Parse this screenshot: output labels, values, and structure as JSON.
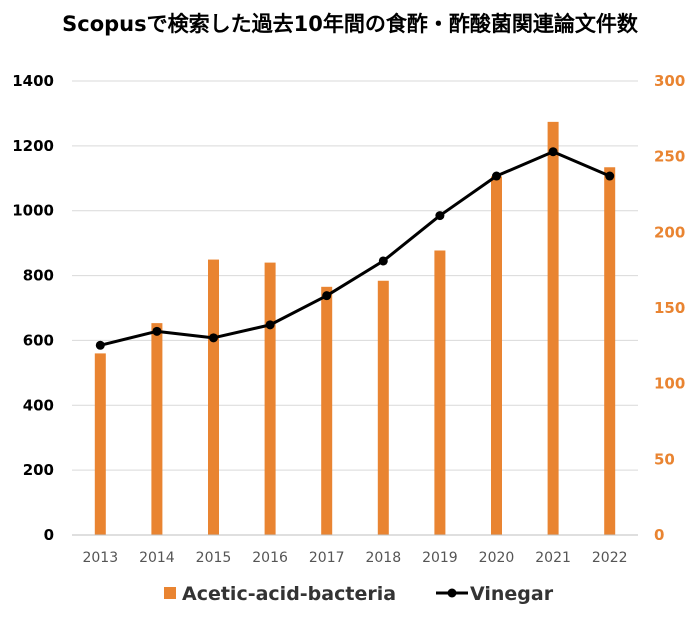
{
  "chart_data": {
    "type": "bar+line",
    "title": "Scopusで検索した過去10年間の食酢・酢酸菌関連論文件数",
    "categories": [
      "2013",
      "2014",
      "2015",
      "2016",
      "2017",
      "2018",
      "2019",
      "2020",
      "2021",
      "2022"
    ],
    "series": [
      {
        "name": "Acetic-acid-bacteria",
        "type": "bar",
        "axis": "right",
        "color": "#e98431",
        "values": [
          120,
          140,
          182,
          180,
          164,
          168,
          188,
          237,
          273,
          243
        ]
      },
      {
        "name": "Vinegar",
        "type": "line",
        "axis": "left",
        "color": "#000000",
        "values": [
          585,
          628,
          608,
          648,
          738,
          845,
          985,
          1107,
          1182,
          1107
        ]
      }
    ],
    "y_left": {
      "ylim": [
        0,
        1400
      ],
      "ticks": [
        "0",
        "200",
        "400",
        "600",
        "800",
        "1000",
        "1200",
        "1400"
      ]
    },
    "y_right": {
      "ylim": [
        0,
        300
      ],
      "ticks": [
        "0",
        "50",
        "100",
        "150",
        "200",
        "250",
        "300"
      ]
    },
    "grid": true,
    "legend": "bottom"
  }
}
